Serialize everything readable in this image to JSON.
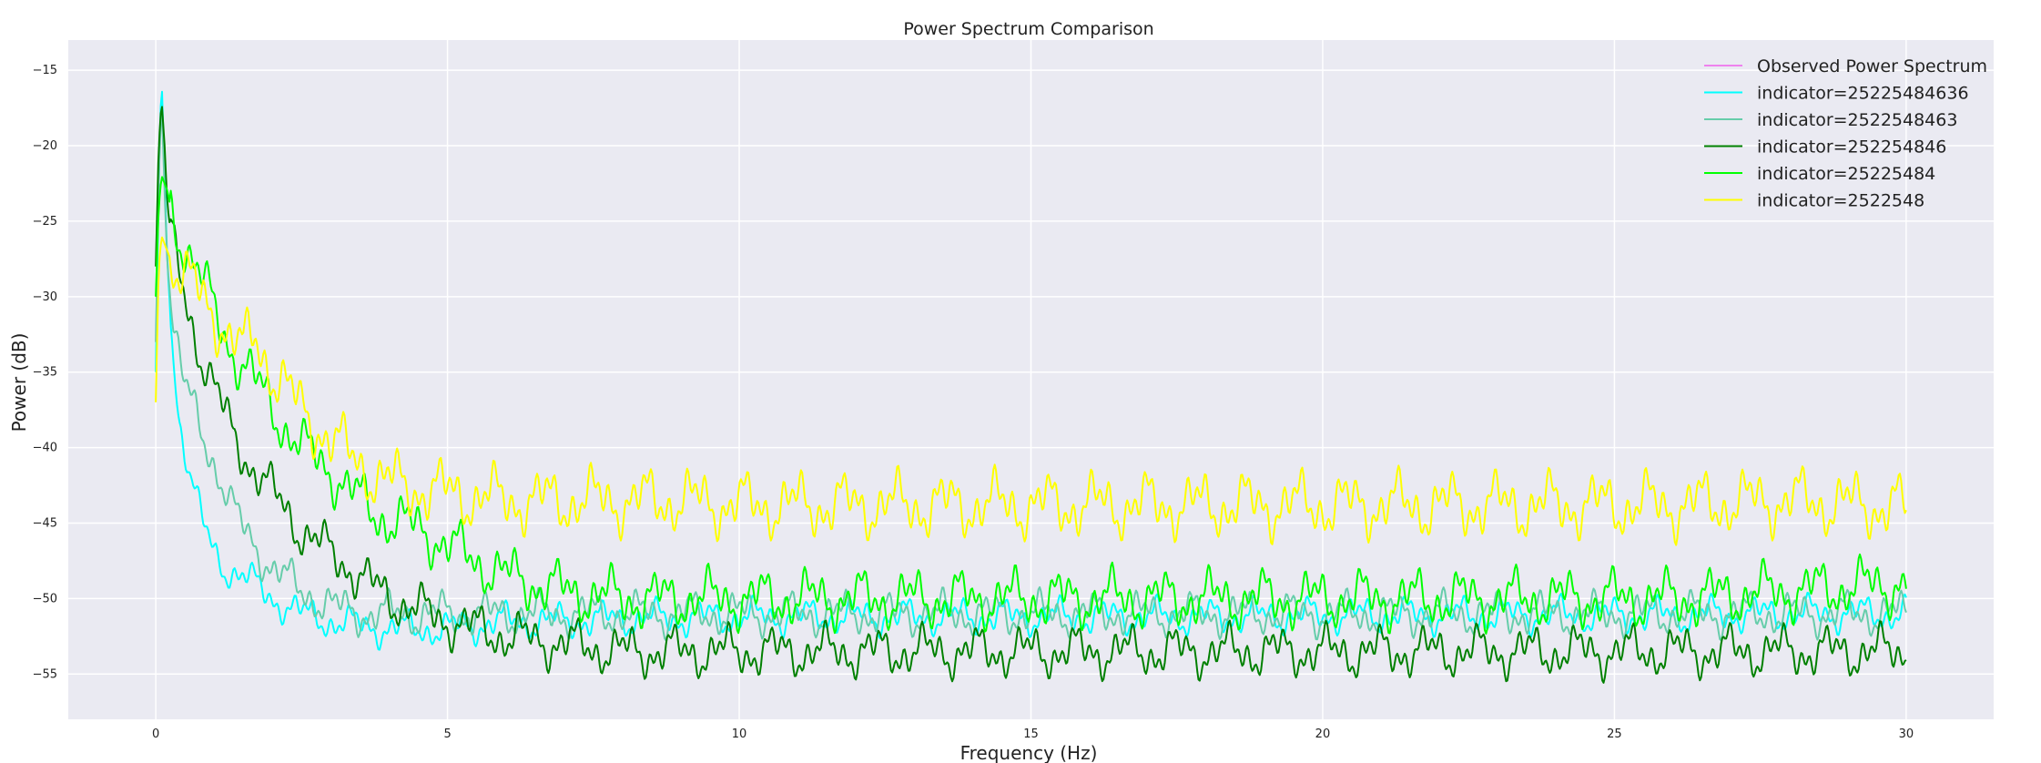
{
  "chart_data": {
    "type": "line",
    "title": "Power Spectrum Comparison",
    "xlabel": "Frequency (Hz)",
    "ylabel": "Power (dB)",
    "xlim": [
      -1.5,
      31.5
    ],
    "ylim": [
      -58,
      -13
    ],
    "xticks": [
      0,
      5,
      10,
      15,
      20,
      25,
      30
    ],
    "yticks": [
      -55,
      -50,
      -45,
      -40,
      -35,
      -30,
      -25,
      -20,
      -15
    ],
    "grid": true,
    "background": "#eaeaf2",
    "legend_position": "top-right",
    "series": [
      {
        "name": "Observed Power Spectrum",
        "color": "#ee82ee",
        "x": [],
        "y": []
      },
      {
        "name": "indicator=25225484636",
        "color": "#00ffff",
        "x": [
          0,
          0.05,
          0.1,
          0.15,
          0.2,
          0.3,
          0.4,
          0.5,
          0.6,
          0.8,
          1.0,
          1.2,
          1.5,
          2.0,
          2.5,
          3.0,
          3.5,
          4,
          5,
          6,
          7,
          8,
          9,
          10,
          12,
          14,
          16,
          18,
          20,
          22,
          24,
          26,
          28,
          30
        ],
        "y": [
          -35,
          -22,
          -15.5,
          -22,
          -28,
          -34,
          -38,
          -40,
          -42,
          -45,
          -47,
          -48,
          -48.5,
          -50,
          -51,
          -51.5,
          -51.8,
          -52,
          -52,
          -51.5,
          -51.5,
          -51.3,
          -51.3,
          -51.2,
          -51.2,
          -51.2,
          -51.2,
          -51.2,
          -51.1,
          -51.1,
          -51.1,
          -51.1,
          -51.0,
          -51
        ]
      },
      {
        "name": "indicator=2522548463",
        "color": "#66cdaa",
        "x": [
          0,
          0.05,
          0.1,
          0.15,
          0.2,
          0.3,
          0.5,
          0.7,
          1.0,
          1.3,
          1.6,
          2.0,
          2.5,
          3.0,
          3.5,
          4,
          5,
          6,
          7,
          8,
          10,
          12,
          14,
          16,
          18,
          20,
          22,
          24,
          26,
          28,
          30
        ],
        "y": [
          -33,
          -22,
          -17,
          -23,
          -28,
          -32,
          -36,
          -38,
          -41,
          -44,
          -46,
          -48,
          -49.5,
          -50.5,
          -51,
          -51,
          -51,
          -51,
          -51,
          -51,
          -51,
          -51,
          -51,
          -51,
          -51,
          -51,
          -51,
          -51,
          -51,
          -51,
          -51
        ]
      },
      {
        "name": "indicator=252254846",
        "color": "#008000",
        "x": [
          0,
          0.05,
          0.1,
          0.15,
          0.2,
          0.3,
          0.5,
          0.7,
          1.0,
          1.3,
          1.6,
          2.0,
          2.5,
          3.0,
          3.5,
          4,
          5,
          6,
          7,
          8,
          9,
          10,
          12,
          14,
          16,
          18,
          20,
          22,
          24,
          26,
          28,
          30
        ],
        "y": [
          -28,
          -20,
          -17,
          -20,
          -24,
          -27,
          -30,
          -33,
          -36,
          -39,
          -41,
          -43,
          -45.5,
          -47,
          -48.5,
          -50,
          -51.5,
          -52.5,
          -53,
          -53.5,
          -53.5,
          -53.5,
          -53.5,
          -53.5,
          -53.5,
          -53.5,
          -53.5,
          -53.5,
          -53.5,
          -53.5,
          -53.5,
          -53.5
        ]
      },
      {
        "name": "indicator=25225484",
        "color": "#00ff00",
        "x": [
          0,
          0.05,
          0.1,
          0.2,
          0.3,
          0.5,
          0.7,
          1.0,
          1.3,
          1.6,
          2.0,
          2.5,
          3.0,
          3.5,
          3.8,
          4.2,
          4.6,
          5.0,
          5.5,
          6,
          7,
          8,
          9,
          10,
          12,
          14,
          16,
          18,
          20,
          22,
          24,
          26,
          28,
          30
        ],
        "y": [
          -30,
          -24,
          -22,
          -23,
          -25,
          -26.5,
          -28,
          -31,
          -33.5,
          -35,
          -37.5,
          -40,
          -41.5,
          -43.5,
          -44.5,
          -45,
          -45.5,
          -46.5,
          -47.5,
          -48.5,
          -49.5,
          -50,
          -50,
          -50,
          -50,
          -50,
          -50,
          -50,
          -50,
          -50,
          -50,
          -50,
          -49.5,
          -49
        ]
      },
      {
        "name": "indicator=2522548",
        "color": "#ffff00",
        "x": [
          0,
          0.05,
          0.1,
          0.2,
          0.3,
          0.5,
          0.7,
          1.0,
          1.3,
          1.5,
          1.7,
          2.0,
          2.5,
          3.0,
          3.5,
          3.8,
          4.2,
          5,
          6,
          7,
          8,
          9,
          10,
          12,
          14,
          16,
          18,
          20,
          22,
          24,
          26,
          28,
          30
        ],
        "y": [
          -37,
          -28,
          -26,
          -27,
          -28,
          -29,
          -29.5,
          -31,
          -33,
          -33.5,
          -32.5,
          -35,
          -37.5,
          -39.5,
          -41,
          -42,
          -42.5,
          -43,
          -43.5,
          -43.5,
          -43.5,
          -43.5,
          -43.8,
          -43.8,
          -43.8,
          -43.8,
          -43.8,
          -43.8,
          -43.8,
          -43.8,
          -43.8,
          -43.5,
          -44
        ]
      }
    ]
  }
}
